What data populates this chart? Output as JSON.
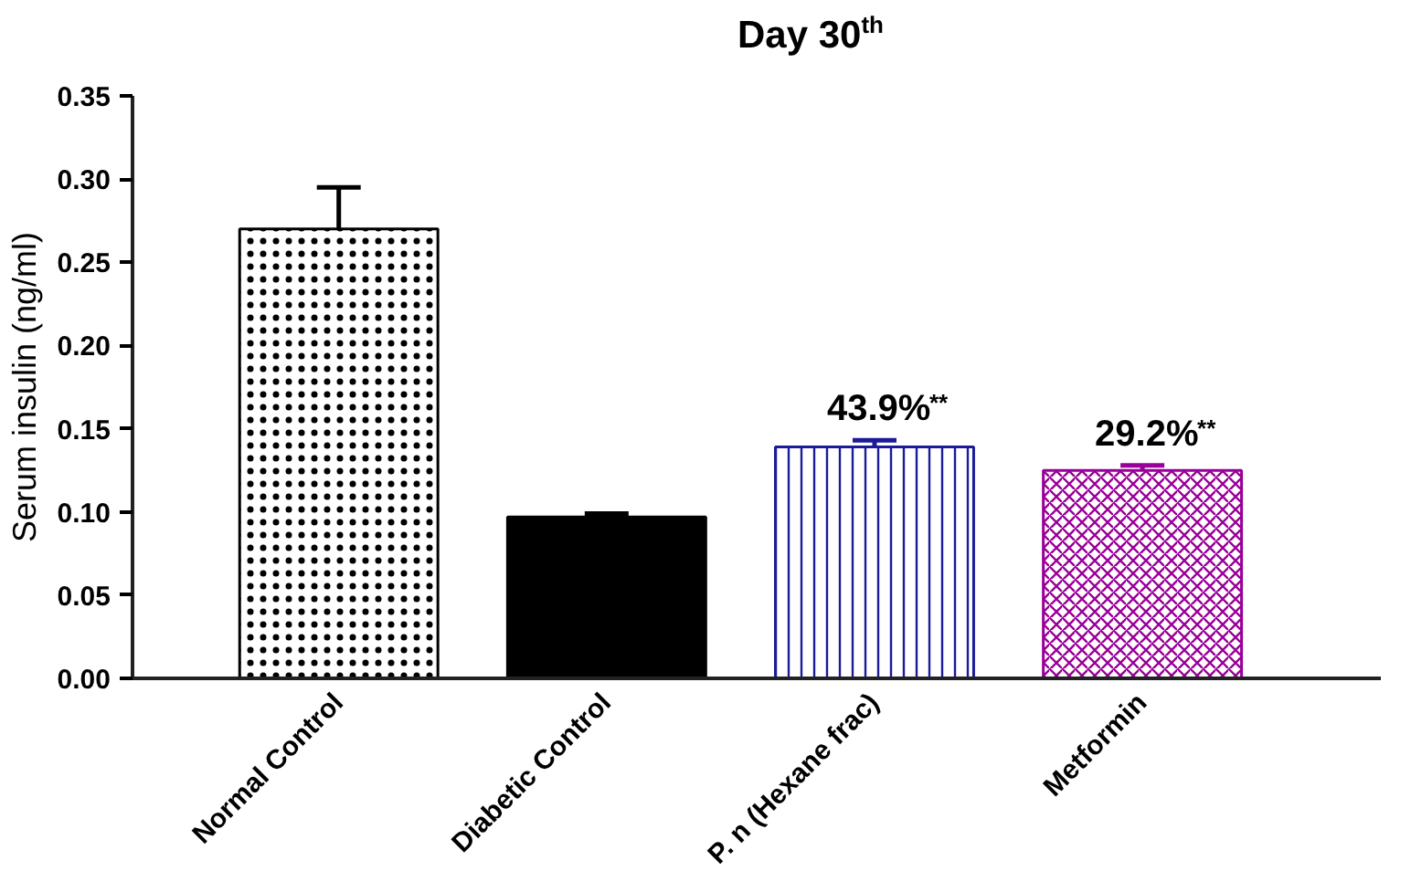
{
  "chart_data": {
    "type": "bar",
    "title": "Day 30$^{th}$",
    "ylabel": "Serum insulin (ng/ml)",
    "categories": [
      "Normal Control",
      "Diabetic Control",
      "P. n (Hexane frac)",
      "Metformin"
    ],
    "values": [
      0.27,
      0.097,
      0.139,
      0.125
    ],
    "errors": [
      [
        0.27,
        0.295
      ],
      [
        0.097,
        0.099
      ],
      [
        0.139,
        0.143
      ],
      [
        0.125,
        0.128
      ]
    ],
    "colors": [
      "#000000",
      "#000000",
      "#1a1a9a",
      "#990099"
    ],
    "ylim": [
      0,
      0.35
    ],
    "yticks": [
      {
        "value": 0,
        "label": "0.00"
      },
      {
        "value": 0.05,
        "label": "0.05"
      },
      {
        "value": 0.1,
        "label": "0.10"
      },
      {
        "value": 0.15,
        "label": "0.15"
      },
      {
        "value": 0.2,
        "label": "0.20"
      },
      {
        "value": 0.25,
        "label": "0.25"
      },
      {
        "value": 0.3,
        "label": "0.30"
      },
      {
        "value": 0.35,
        "label": "0.35"
      }
    ],
    "annotations": [
      {
        "text": "43.9%$^{**}$",
        "x": "P. n (Hexane frac)",
        "y": 0.143
      },
      {
        "text": "29.2%$^{**}$",
        "x": "Metformin",
        "y": 0.128
      }
    ],
    "grid": false
  }
}
